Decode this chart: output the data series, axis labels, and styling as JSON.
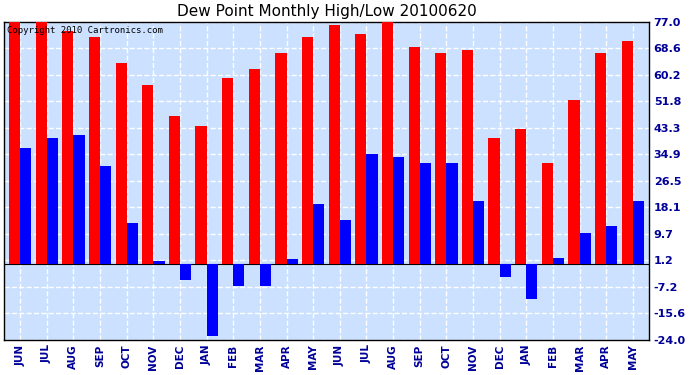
{
  "title": "Dew Point Monthly High/Low 20100620",
  "copyright": "Copyright 2010 Cartronics.com",
  "categories": [
    "JUN",
    "JUL",
    "AUG",
    "SEP",
    "OCT",
    "NOV",
    "DEC",
    "JAN",
    "FEB",
    "MAR",
    "APR",
    "MAY",
    "JUN",
    "JUL",
    "AUG",
    "SEP",
    "OCT",
    "NOV",
    "DEC",
    "JAN",
    "FEB",
    "MAR",
    "APR",
    "MAY"
  ],
  "highs": [
    77.0,
    77.0,
    74.0,
    72.0,
    64.0,
    57.0,
    47.0,
    44.0,
    59.0,
    62.0,
    67.0,
    72.0,
    76.0,
    73.0,
    78.0,
    69.0,
    67.0,
    68.0,
    40.0,
    43.0,
    32.0,
    52.0,
    67.0,
    71.0
  ],
  "lows": [
    37.0,
    40.0,
    41.0,
    31.0,
    13.0,
    1.0,
    -5.0,
    -23.0,
    -7.0,
    -7.0,
    1.5,
    19.0,
    14.0,
    35.0,
    34.0,
    32.0,
    32.0,
    20.0,
    -4.0,
    -11.0,
    2.0,
    10.0,
    12.0,
    20.0
  ],
  "high_color": "#ff0000",
  "low_color": "#0000ff",
  "bg_color": "#ffffff",
  "plot_bg_color": "#cce0ff",
  "grid_color": "#ffffff",
  "yticks": [
    77.0,
    68.6,
    60.2,
    51.8,
    43.3,
    34.9,
    26.5,
    18.1,
    9.7,
    1.2,
    -7.2,
    -15.6,
    -24.0
  ],
  "ylim": [
    -24.0,
    77.0
  ],
  "bar_width": 0.42,
  "title_fontsize": 11,
  "label_fontsize": 7.5,
  "tick_fontsize": 8
}
